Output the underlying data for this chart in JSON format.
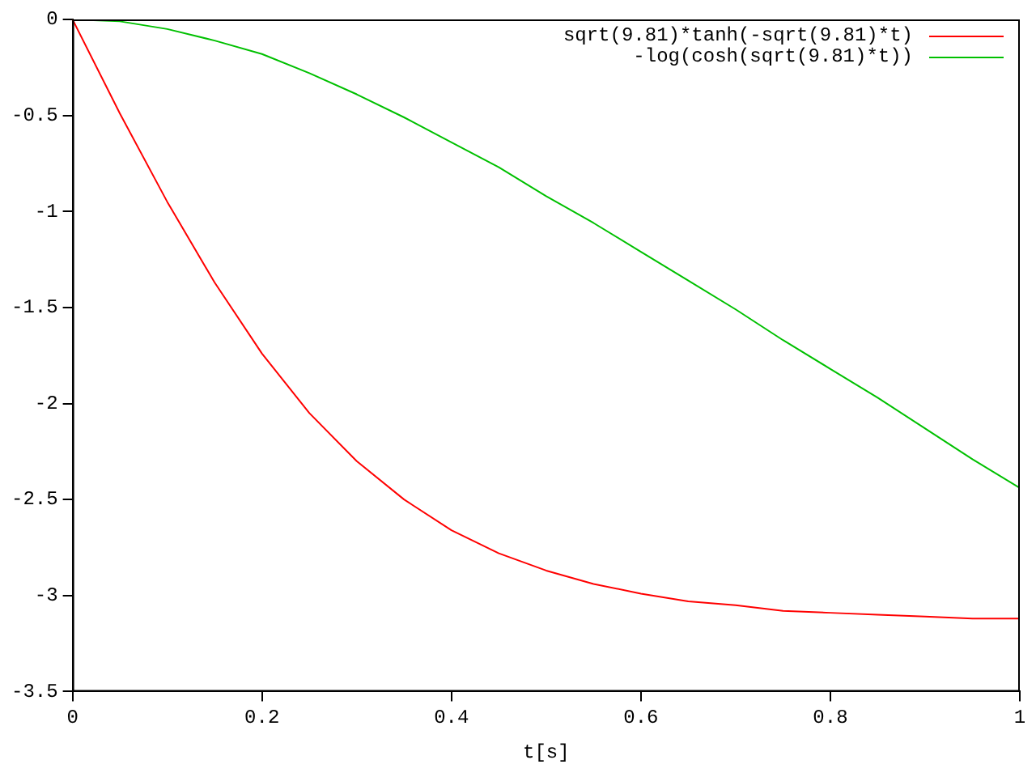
{
  "chart_data": {
    "type": "line",
    "xlabel": "t[s]",
    "x": [
      0,
      0.05,
      0.1,
      0.15,
      0.2,
      0.25,
      0.3,
      0.35,
      0.4,
      0.45,
      0.5,
      0.55,
      0.6,
      0.65,
      0.7,
      0.75,
      0.8,
      0.85,
      0.9,
      0.95,
      1
    ],
    "series": [
      {
        "name": "sqrt(9.81)*tanh(-sqrt(9.81)*t)",
        "color": "#ff0000",
        "values": [
          0,
          -0.49,
          -0.95,
          -1.37,
          -1.74,
          -2.05,
          -2.3,
          -2.5,
          -2.66,
          -2.78,
          -2.87,
          -2.94,
          -2.99,
          -3.03,
          -3.05,
          -3.08,
          -3.09,
          -3.1,
          -3.11,
          -3.12,
          -3.12
        ]
      },
      {
        "name": "-log(cosh(sqrt(9.81)*t))",
        "color": "#00c000",
        "values": [
          0,
          -0.01,
          -0.05,
          -0.11,
          -0.18,
          -0.28,
          -0.39,
          -0.51,
          -0.64,
          -0.77,
          -0.92,
          -1.06,
          -1.21,
          -1.36,
          -1.51,
          -1.67,
          -1.82,
          -1.97,
          -2.13,
          -2.29,
          -2.44
        ]
      }
    ],
    "xlim": [
      0,
      1
    ],
    "xticks": [
      0,
      0.2,
      0.4,
      0.6,
      0.8,
      1
    ],
    "ylim": [
      -3.5,
      0
    ],
    "yticks": [
      -3.5,
      -3,
      -2.5,
      -2,
      -1.5,
      -1,
      -0.5,
      0
    ],
    "grid": false,
    "legend": "top right",
    "marker": "none",
    "line_style": "solid"
  }
}
